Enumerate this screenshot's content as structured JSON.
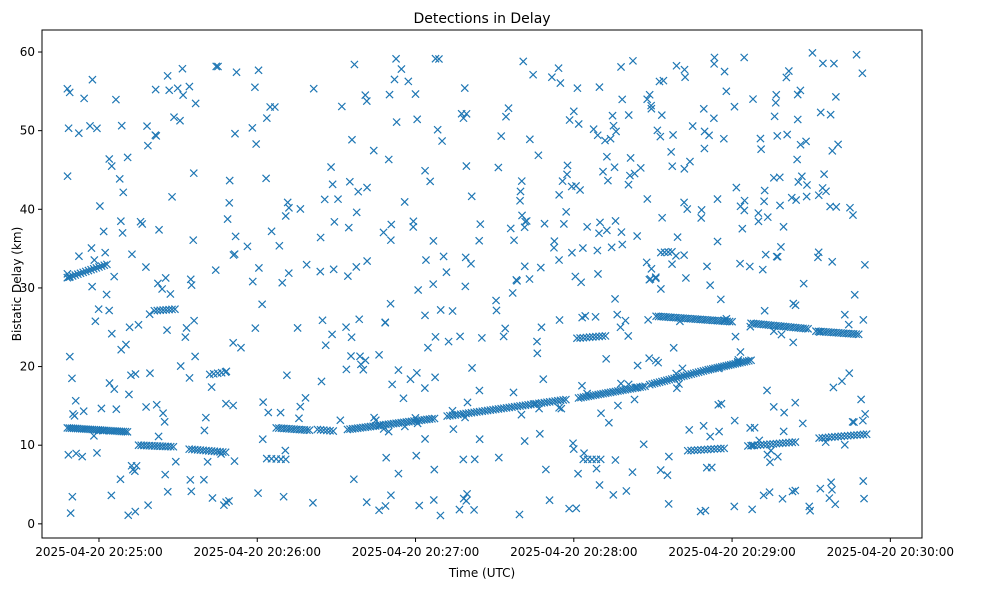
{
  "chart_data": {
    "type": "scatter",
    "title": "Detections in Delay",
    "xlabel": "Time (UTC)",
    "ylabel": "Bistatic Delay (km)",
    "x_unit": "minutes after 2025-04-20 20:24:00",
    "xlim": [
      0.64,
      6.2
    ],
    "ylim": [
      -1.8,
      62.8
    ],
    "xticks": [
      {
        "value": 1,
        "label": "2025-04-20 20:25:00"
      },
      {
        "value": 2,
        "label": "2025-04-20 20:26:00"
      },
      {
        "value": 3,
        "label": "2025-04-20 20:27:00"
      },
      {
        "value": 4,
        "label": "2025-04-20 20:28:00"
      },
      {
        "value": 5,
        "label": "2025-04-20 20:29:00"
      },
      {
        "value": 6,
        "label": "2025-04-20 20:30:00"
      }
    ],
    "yticks": [
      {
        "value": 0,
        "label": "0"
      },
      {
        "value": 10,
        "label": "10"
      },
      {
        "value": 20,
        "label": "20"
      },
      {
        "value": 30,
        "label": "30"
      },
      {
        "value": 40,
        "label": "40"
      },
      {
        "value": 50,
        "label": "50"
      },
      {
        "value": 60,
        "label": "60"
      }
    ],
    "marker": "x",
    "color": "#1f77b4",
    "tracks": [
      {
        "x0": 0.8,
        "x1": 1.18,
        "y0": 12.2,
        "y1": 11.7,
        "n": 30
      },
      {
        "x0": 1.25,
        "x1": 1.47,
        "y0": 10.0,
        "y1": 9.8,
        "n": 14
      },
      {
        "x0": 1.57,
        "x1": 1.8,
        "y0": 9.5,
        "y1": 9.1,
        "n": 14
      },
      {
        "x0": 2.12,
        "x1": 2.33,
        "y0": 12.2,
        "y1": 11.9,
        "n": 14
      },
      {
        "x0": 2.38,
        "x1": 2.48,
        "y0": 12.0,
        "y1": 11.8,
        "n": 6
      },
      {
        "x0": 2.57,
        "x1": 3.12,
        "y0": 12.0,
        "y1": 13.4,
        "n": 35
      },
      {
        "x0": 3.2,
        "x1": 3.95,
        "y0": 13.7,
        "y1": 15.8,
        "n": 45
      },
      {
        "x0": 4.03,
        "x1": 4.45,
        "y0": 16.0,
        "y1": 17.5,
        "n": 28
      },
      {
        "x0": 4.48,
        "x1": 4.85,
        "y0": 17.7,
        "y1": 19.6,
        "n": 25
      },
      {
        "x0": 4.85,
        "x1": 5.12,
        "y0": 19.6,
        "y1": 20.8,
        "n": 20
      },
      {
        "x0": 4.52,
        "x1": 5.0,
        "y0": 26.4,
        "y1": 25.7,
        "n": 32
      },
      {
        "x0": 5.12,
        "x1": 5.48,
        "y0": 25.5,
        "y1": 24.8,
        "n": 24
      },
      {
        "x0": 5.53,
        "x1": 5.8,
        "y0": 24.5,
        "y1": 24.1,
        "n": 18
      },
      {
        "x0": 0.8,
        "x1": 1.05,
        "y0": 31.3,
        "y1": 33.0,
        "n": 16
      },
      {
        "x0": 1.35,
        "x1": 1.48,
        "y0": 27.1,
        "y1": 27.3,
        "n": 8
      },
      {
        "x0": 4.72,
        "x1": 4.95,
        "y0": 9.3,
        "y1": 9.6,
        "n": 12
      },
      {
        "x0": 5.1,
        "x1": 5.4,
        "y0": 9.9,
        "y1": 10.4,
        "n": 16
      },
      {
        "x0": 5.55,
        "x1": 5.85,
        "y0": 10.9,
        "y1": 11.4,
        "n": 16
      },
      {
        "x0": 4.02,
        "x1": 4.2,
        "y0": 23.6,
        "y1": 23.9,
        "n": 10
      },
      {
        "x0": 4.06,
        "x1": 4.17,
        "y0": 8.2,
        "y1": 8.2,
        "n": 5
      },
      {
        "x0": 2.06,
        "x1": 2.18,
        "y0": 8.3,
        "y1": 8.2,
        "n": 5
      },
      {
        "x0": 1.7,
        "x1": 1.8,
        "y0": 19.0,
        "y1": 19.3,
        "n": 5
      },
      {
        "x0": 4.55,
        "x1": 4.62,
        "y0": 34.5,
        "y1": 34.6,
        "n": 4
      }
    ],
    "noise": {
      "count": 640,
      "x_range": [
        0.8,
        5.86
      ],
      "y_range": [
        1.0,
        60.0
      ],
      "seed": 7
    }
  }
}
